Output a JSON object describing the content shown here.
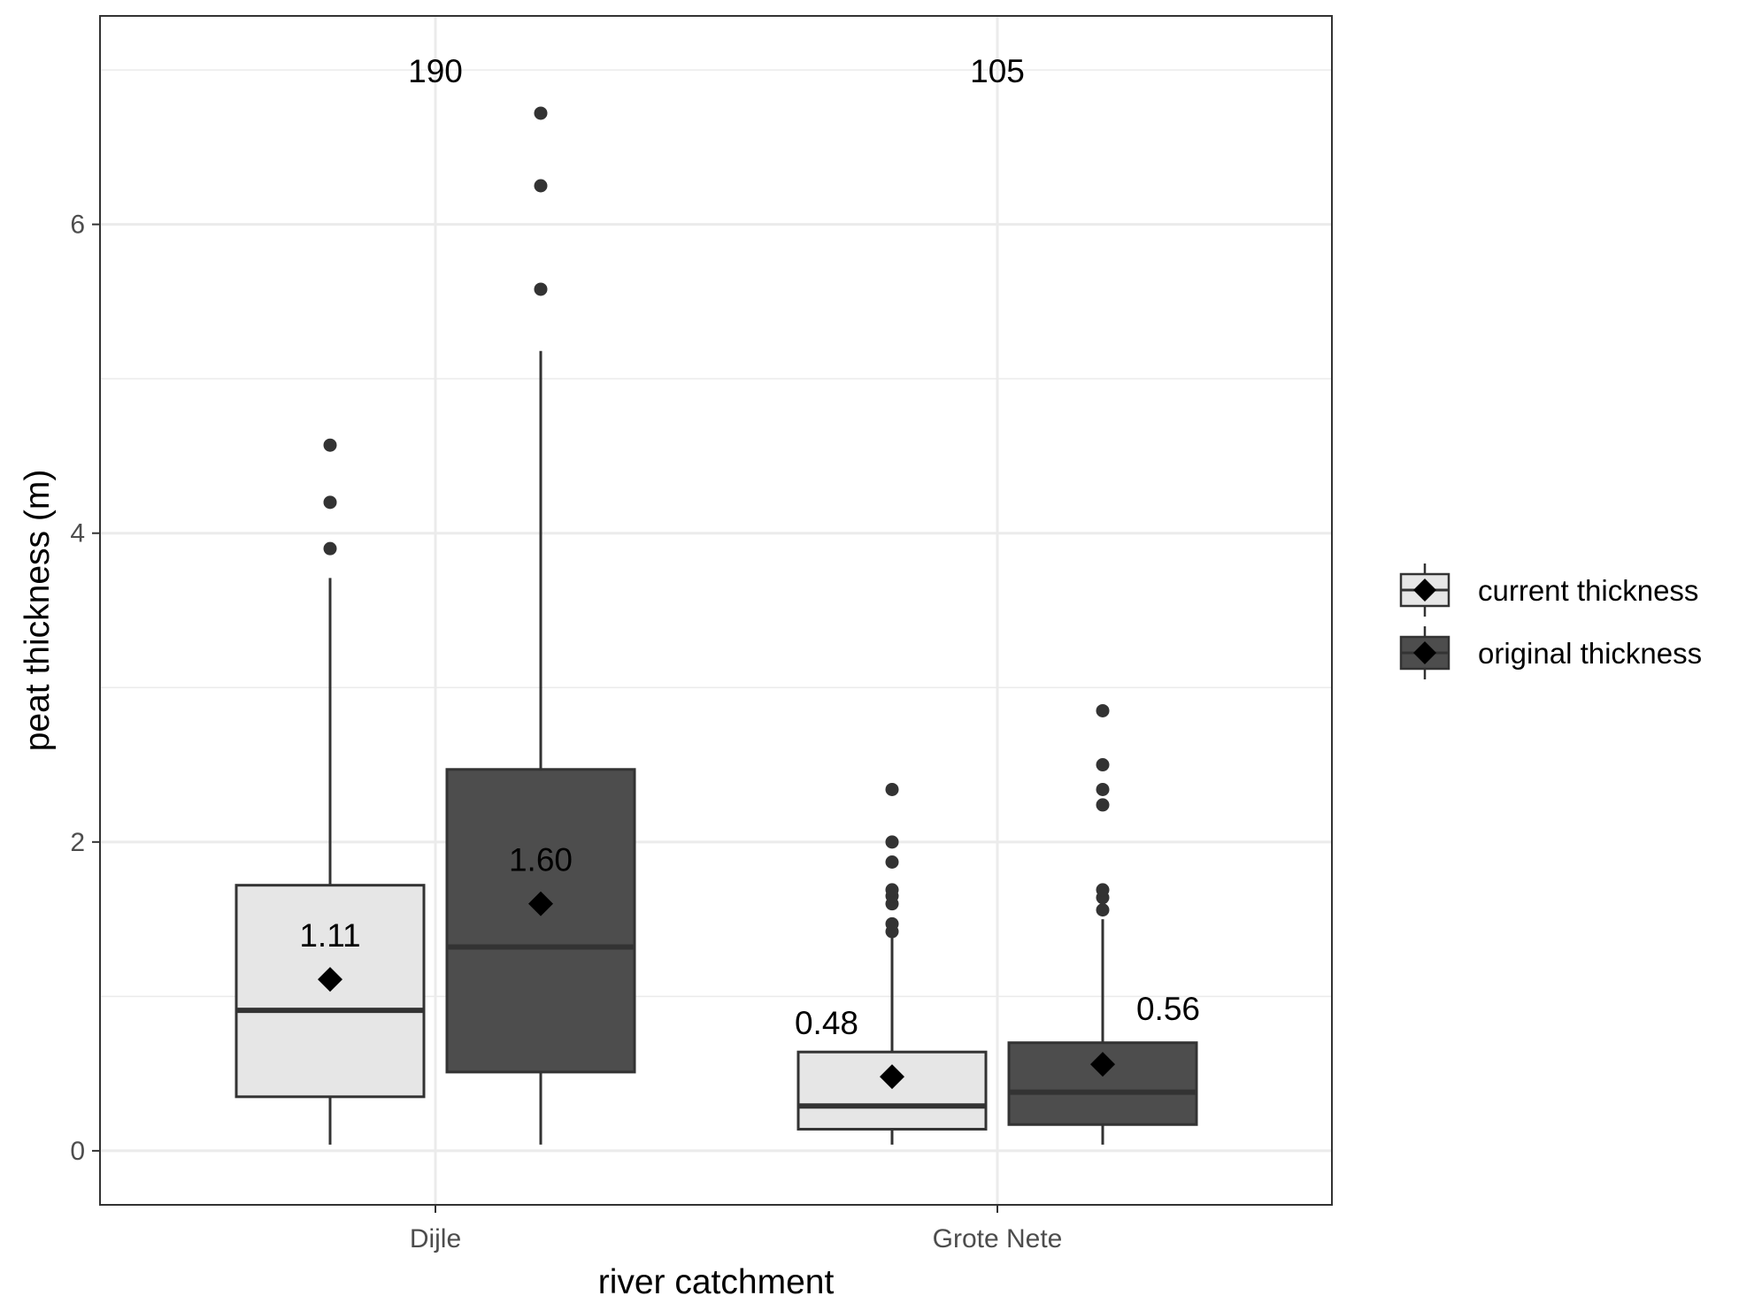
{
  "chart_data": {
    "type": "box",
    "xlabel": "river catchment",
    "ylabel": "peat thickness (m)",
    "ylim": [
      -0.35,
      7.35
    ],
    "yticks": [
      0,
      2,
      4,
      6
    ],
    "grid": true,
    "legend_position": "right",
    "categories": [
      "Dijle",
      "Grote Nete"
    ],
    "colors": {
      "current": "#e6e6e6",
      "original": "#4d4d4d",
      "stroke": "#333333",
      "grid": "#ebebeb"
    },
    "series": [
      {
        "name": "current thickness",
        "boxes": [
          {
            "category": "Dijle",
            "whisker_low": 0.04,
            "q1": 0.35,
            "median": 0.91,
            "q3": 1.72,
            "whisker_high": 3.71,
            "mean": 1.11,
            "outliers": [
              3.9,
              4.2,
              4.57
            ],
            "mean_label": "1.11"
          },
          {
            "category": "Grote Nete",
            "whisker_low": 0.04,
            "q1": 0.14,
            "median": 0.29,
            "q3": 0.64,
            "whisker_high": 1.38,
            "mean": 0.48,
            "outliers": [
              1.42,
              1.47,
              1.6,
              1.65,
              1.69,
              1.87,
              2.0,
              2.34
            ],
            "mean_label": "0.48"
          }
        ]
      },
      {
        "name": "original thickness",
        "boxes": [
          {
            "category": "Dijle",
            "whisker_low": 0.04,
            "q1": 0.51,
            "median": 1.32,
            "q3": 2.47,
            "whisker_high": 5.18,
            "mean": 1.6,
            "outliers": [
              5.58,
              6.25,
              6.72
            ],
            "mean_label": "1.60"
          },
          {
            "category": "Grote Nete",
            "whisker_low": 0.04,
            "q1": 0.17,
            "median": 0.38,
            "q3": 0.7,
            "whisker_high": 1.5,
            "mean": 0.56,
            "outliers": [
              1.56,
              1.64,
              1.69,
              2.24,
              2.34,
              2.5,
              2.85
            ],
            "mean_label": "0.56"
          }
        ]
      }
    ],
    "counts": [
      {
        "category": "Dijle",
        "label": "190"
      },
      {
        "category": "Grote Nete",
        "label": "105"
      }
    ]
  }
}
